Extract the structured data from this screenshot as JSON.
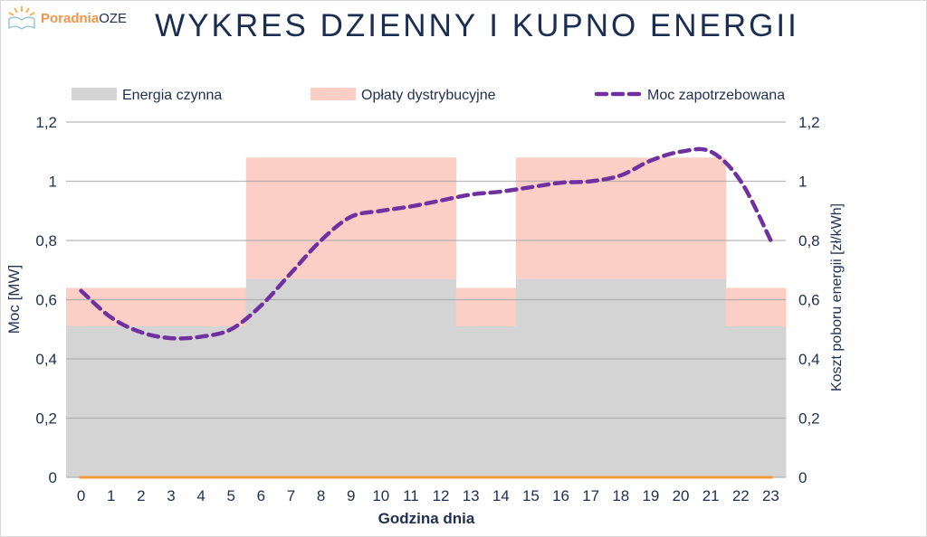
{
  "logo": {
    "part1": "Poradnia",
    "part2": "OZE"
  },
  "title": "WYKRES DZIENNY I KUPNO ENERGII",
  "chart_data": {
    "type": "bar",
    "title": "WYKRES DZIENNY I KUPNO ENERGII",
    "xlabel": "Godzina dnia",
    "ylabel": "Moc [MW]",
    "y2label": "Koszt poboru energii [zł/kWh]",
    "ylim": [
      0,
      1.2
    ],
    "y2lim": [
      0,
      1.2
    ],
    "yticks": [
      "0",
      "0,2",
      "0,4",
      "0,6",
      "0,8",
      "1",
      "1,2"
    ],
    "y2ticks": [
      "0",
      "0,2",
      "0,4",
      "0,6",
      "0,8",
      "1",
      "1,2"
    ],
    "ytick_values": [
      0,
      0.2,
      0.4,
      0.6,
      0.8,
      1.0,
      1.2
    ],
    "categories": [
      "0",
      "1",
      "2",
      "3",
      "4",
      "5",
      "6",
      "7",
      "8",
      "9",
      "10",
      "11",
      "12",
      "13",
      "14",
      "15",
      "16",
      "17",
      "18",
      "19",
      "20",
      "21",
      "22",
      "23"
    ],
    "legend_position": "top",
    "grid": true,
    "series": [
      {
        "name": "Energia czynna",
        "type": "stacked-area-step",
        "color": "#d4d4d4",
        "values": [
          0.51,
          0.51,
          0.51,
          0.51,
          0.51,
          0.51,
          0.67,
          0.67,
          0.67,
          0.67,
          0.67,
          0.67,
          0.67,
          0.51,
          0.51,
          0.67,
          0.67,
          0.67,
          0.67,
          0.67,
          0.67,
          0.67,
          0.51,
          0.51
        ]
      },
      {
        "name": "Opłaty dystrybucyjne",
        "type": "stacked-area-step",
        "color": "#fbcfc5",
        "values": [
          0.13,
          0.13,
          0.13,
          0.13,
          0.13,
          0.13,
          0.41,
          0.41,
          0.41,
          0.41,
          0.41,
          0.41,
          0.41,
          0.13,
          0.13,
          0.41,
          0.41,
          0.41,
          0.41,
          0.41,
          0.41,
          0.41,
          0.13,
          0.13
        ]
      },
      {
        "name": "Moc zapotrzebowana",
        "type": "line-dashed",
        "color": "#7030a0",
        "values": [
          0.63,
          0.54,
          0.49,
          0.47,
          0.475,
          0.5,
          0.58,
          0.69,
          0.8,
          0.88,
          0.9,
          0.915,
          0.935,
          0.955,
          0.965,
          0.98,
          0.995,
          1.0,
          1.02,
          1.07,
          1.1,
          1.1,
          1.0,
          0.8
        ]
      },
      {
        "name": "",
        "type": "line",
        "color": "#f39a3c",
        "values": [
          0,
          0,
          0,
          0,
          0,
          0,
          0,
          0,
          0,
          0,
          0,
          0,
          0,
          0,
          0,
          0,
          0,
          0,
          0,
          0,
          0,
          0,
          0,
          0
        ]
      }
    ]
  }
}
